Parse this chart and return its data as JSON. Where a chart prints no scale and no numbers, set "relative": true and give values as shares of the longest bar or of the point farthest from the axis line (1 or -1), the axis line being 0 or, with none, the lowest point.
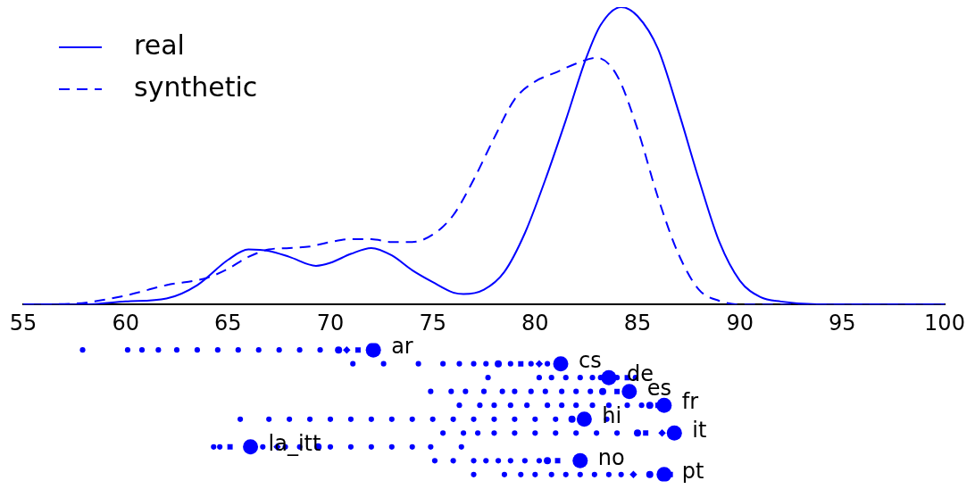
{
  "chart_data": [
    {
      "type": "line",
      "relative": true,
      "legend": "top left",
      "xlim": [
        55,
        100
      ],
      "xticks": [
        55,
        60,
        65,
        70,
        75,
        80,
        85,
        90,
        95,
        100
      ],
      "series": [
        {
          "name": "real",
          "color": "#0000ff",
          "line_style": "solid",
          "x": [
            55,
            58,
            60,
            62,
            63.5,
            65,
            66,
            67,
            68,
            69.3,
            70,
            71,
            72,
            73,
            74,
            75,
            76,
            76.5,
            77.5,
            78.5,
            79.5,
            80.5,
            81.5,
            82.5,
            83.2,
            84.2,
            85,
            86,
            87,
            88,
            89,
            90,
            91,
            92,
            94,
            100
          ],
          "values": [
            0,
            0,
            0.01,
            0.02,
            0.065,
            0.15,
            0.185,
            0.18,
            0.16,
            0.13,
            0.14,
            0.17,
            0.19,
            0.165,
            0.115,
            0.075,
            0.04,
            0.035,
            0.05,
            0.11,
            0.24,
            0.42,
            0.62,
            0.83,
            0.94,
            1,
            0.97,
            0.86,
            0.65,
            0.42,
            0.21,
            0.08,
            0.025,
            0.01,
            0,
            0
          ]
        },
        {
          "name": "synthetic",
          "color": "#0000ff",
          "line_style": "dashed",
          "x": [
            55,
            57.5,
            60,
            62,
            64,
            65,
            66,
            67,
            68,
            69,
            70,
            71,
            72,
            73,
            74,
            75,
            76,
            77,
            78,
            79,
            80,
            81,
            82,
            83,
            84,
            85,
            86,
            87,
            88,
            89,
            90,
            100
          ],
          "values": [
            0,
            0.003,
            0.03,
            0.065,
            0.09,
            0.12,
            0.16,
            0.185,
            0.19,
            0.195,
            0.21,
            0.22,
            0.22,
            0.21,
            0.21,
            0.235,
            0.3,
            0.42,
            0.56,
            0.69,
            0.75,
            0.78,
            0.81,
            0.83,
            0.77,
            0.59,
            0.36,
            0.17,
            0.05,
            0.012,
            0,
            0
          ]
        }
      ]
    },
    {
      "type": "bubble",
      "relative": true,
      "tick_labels": false,
      "xlim": [
        55,
        100
      ],
      "series": [
        {
          "name": "ar",
          "color": "#0000ff",
          "marker": "circle",
          "x": [
            57.9,
            60.1,
            60.8,
            61.6,
            62.5,
            63.5,
            64.5,
            65.5,
            66.5,
            67.5,
            68.5,
            69.5,
            70.4,
            72.1
          ],
          "values": [
            1,
            1,
            1,
            1,
            1,
            1,
            1,
            1,
            1,
            1,
            1,
            1,
            1,
            1
          ],
          "sizes": [
            0.13,
            0.13,
            0.13,
            0.13,
            0.13,
            0.13,
            0.13,
            0.13,
            0.13,
            0.13,
            0.13,
            0.13,
            0.22,
            1
          ]
        },
        {
          "name": "cs",
          "color": "#0000ff",
          "marker": "circle",
          "x": [
            71.1,
            72.6,
            74.3,
            75.5,
            76.3,
            77.0,
            77.6,
            78.2,
            78.8,
            79.8,
            80.6,
            81.25
          ],
          "values": [
            0.889,
            0.889,
            0.889,
            0.889,
            0.889,
            0.889,
            0.889,
            0.889,
            0.889,
            0.889,
            0.889,
            0.889
          ],
          "sizes": [
            0.13,
            0.13,
            0.13,
            0.13,
            0.13,
            0.13,
            0.13,
            0.22,
            0.13,
            0.13,
            0.13,
            1
          ]
        },
        {
          "name": "de",
          "color": "#0000ff",
          "marker": "circle",
          "x": [
            77.7,
            80.2,
            80.8,
            81.5,
            82.2,
            82.8,
            83.2,
            84.0,
            84.9,
            83.6
          ],
          "values": [
            0.778,
            0.778,
            0.778,
            0.778,
            0.778,
            0.778,
            0.778,
            0.778,
            0.778,
            0.778
          ],
          "sizes": [
            0.13,
            0.13,
            0.13,
            0.13,
            0.13,
            0.13,
            0.13,
            0.13,
            0.13,
            1
          ]
        },
        {
          "name": "es",
          "color": "#0000ff",
          "marker": "circle",
          "x": [
            74.9,
            75.9,
            76.6,
            77.5,
            78.4,
            79.0,
            79.8,
            80.5,
            81.3,
            82.0,
            82.7,
            83.3,
            84.6
          ],
          "values": [
            0.667,
            0.667,
            0.667,
            0.667,
            0.667,
            0.667,
            0.667,
            0.667,
            0.667,
            0.667,
            0.667,
            0.667,
            0.667
          ],
          "sizes": [
            0.13,
            0.13,
            0.13,
            0.13,
            0.13,
            0.13,
            0.13,
            0.13,
            0.13,
            0.13,
            0.13,
            0.22,
            1
          ]
        },
        {
          "name": "fr",
          "color": "#0000ff",
          "marker": "circle",
          "x": [
            76.3,
            77.3,
            78.0,
            78.8,
            79.6,
            80.6,
            81.3,
            82.0,
            82.8,
            83.6,
            84.5,
            85.2,
            85.6,
            86.3
          ],
          "values": [
            0.556,
            0.556,
            0.556,
            0.556,
            0.556,
            0.556,
            0.556,
            0.556,
            0.556,
            0.556,
            0.556,
            0.556,
            0.556,
            0.556
          ],
          "sizes": [
            0.13,
            0.13,
            0.13,
            0.13,
            0.13,
            0.13,
            0.13,
            0.13,
            0.13,
            0.13,
            0.13,
            0.13,
            0.22,
            1
          ]
        },
        {
          "name": "hi",
          "color": "#0000ff",
          "marker": "circle",
          "x": [
            65.6,
            67.0,
            68.0,
            69.0,
            70.0,
            71.0,
            72.0,
            73.0,
            74.0,
            75.0,
            76.0,
            77.0,
            78.0,
            79.0,
            80.0,
            81.0,
            83.5,
            81.8,
            82.4
          ],
          "values": [
            0.444,
            0.444,
            0.444,
            0.444,
            0.444,
            0.444,
            0.444,
            0.444,
            0.444,
            0.444,
            0.444,
            0.444,
            0.444,
            0.444,
            0.444,
            0.444,
            0.444,
            0.444,
            0.444
          ],
          "sizes": [
            0.13,
            0.13,
            0.13,
            0.13,
            0.13,
            0.13,
            0.13,
            0.13,
            0.13,
            0.13,
            0.13,
            0.13,
            0.13,
            0.13,
            0.13,
            0.13,
            0.13,
            0.22,
            1
          ]
        },
        {
          "name": "it",
          "color": "#0000ff",
          "marker": "circle",
          "x": [
            75.5,
            76.5,
            77.2,
            78.0,
            79.0,
            80.0,
            81.0,
            82.0,
            83.0,
            84.0,
            85.0,
            86.8
          ],
          "values": [
            0.333,
            0.333,
            0.333,
            0.333,
            0.333,
            0.333,
            0.333,
            0.333,
            0.333,
            0.333,
            0.333,
            0.333
          ],
          "sizes": [
            0.13,
            0.13,
            0.13,
            0.13,
            0.13,
            0.13,
            0.13,
            0.13,
            0.13,
            0.13,
            0.22,
            1
          ]
        },
        {
          "name": "la_itt",
          "color": "#0000ff",
          "marker": "circle",
          "x": [
            64.3,
            64.6,
            66.7,
            67.8,
            68.5,
            70.0,
            71.0,
            72.0,
            73.0,
            74.0,
            74.9,
            76.4,
            69.4,
            66.1
          ],
          "values": [
            0.222,
            0.222,
            0.222,
            0.222,
            0.222,
            0.222,
            0.222,
            0.222,
            0.222,
            0.222,
            0.222,
            0.222,
            0.222,
            0.222
          ],
          "sizes": [
            0.13,
            0.13,
            0.13,
            0.13,
            0.13,
            0.13,
            0.13,
            0.13,
            0.13,
            0.13,
            0.13,
            0.13,
            0.22,
            1
          ]
        },
        {
          "name": "no",
          "color": "#0000ff",
          "marker": "circle",
          "x": [
            75.1,
            76.0,
            77.0,
            77.6,
            78.2,
            78.8,
            79.5,
            80.2,
            80.6,
            82.2
          ],
          "values": [
            0.111,
            0.111,
            0.111,
            0.111,
            0.111,
            0.111,
            0.111,
            0.111,
            0.111,
            0.111
          ],
          "sizes": [
            0.13,
            0.13,
            0.13,
            0.13,
            0.13,
            0.13,
            0.13,
            0.13,
            0.22,
            1
          ]
        },
        {
          "name": "pt",
          "color": "#0000ff",
          "marker": "circle",
          "x": [
            77.0,
            78.5,
            79.3,
            80.0,
            80.8,
            81.5,
            82.2,
            82.9,
            83.6,
            84.2,
            85.6,
            86.3
          ],
          "values": [
            0,
            0,
            0,
            0,
            0,
            0,
            0,
            0,
            0,
            0,
            0,
            0
          ],
          "sizes": [
            0.13,
            0.13,
            0.13,
            0.13,
            0.13,
            0.13,
            0.13,
            0.13,
            0.13,
            0.13,
            0.22,
            1
          ]
        },
        {
          "type": "scatter",
          "color": "#0000ff",
          "marker": "diamond",
          "x": [
            70.8,
            80.2,
            86.2,
            67.4,
            84.8
          ],
          "values": [
            1,
            0.889,
            0.333,
            0.222,
            0
          ]
        },
        {
          "type": "scatter",
          "color": "#0000ff",
          "marker": "square",
          "x": [
            71.35,
            79.3,
            84.5,
            84.0,
            86.0,
            85.4,
            65.1,
            81.1,
            86.6
          ],
          "values": [
            1,
            0.889,
            0.778,
            0.667,
            0.556,
            0.333,
            0.222,
            0.111,
            0
          ]
        }
      ]
    }
  ]
}
